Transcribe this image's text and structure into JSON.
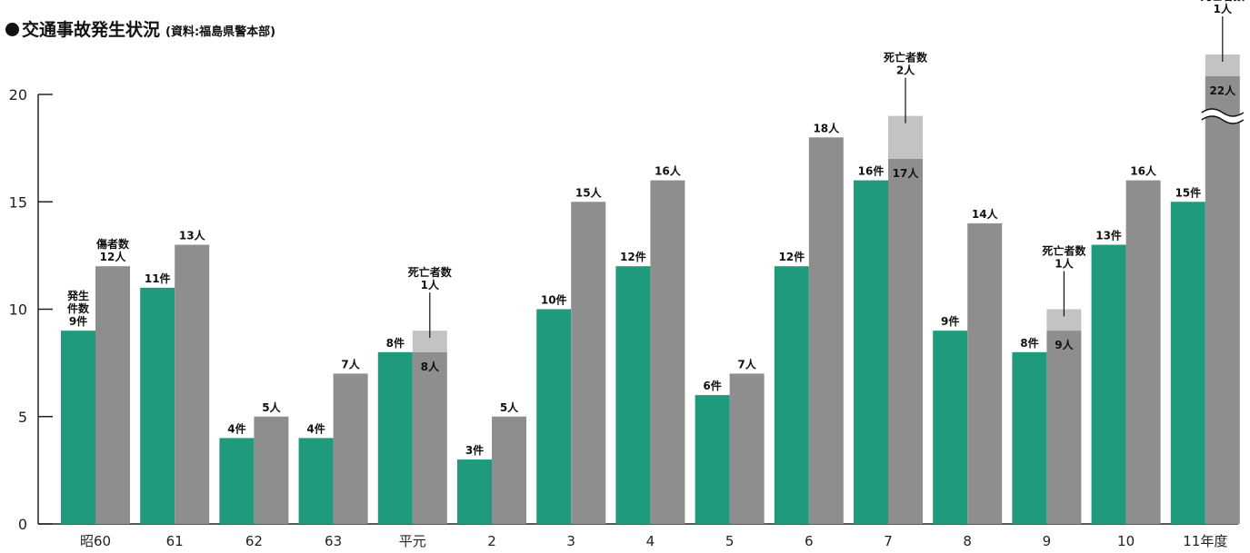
{
  "header": {
    "title": "交通事故発生状況",
    "source": "(資料:福島県警本部)"
  },
  "colors": {
    "accidents": "#1f9a7c",
    "injured": "#8e8e8e",
    "fatalities": "#c3c3c3",
    "axis": "#222222"
  },
  "chart_data": {
    "type": "bar",
    "title": "交通事故発生状況",
    "xlabel": "",
    "ylabel": "",
    "ylim": [
      0,
      20
    ],
    "yticks": [
      0,
      5,
      10,
      15,
      20
    ],
    "grid": false,
    "categories": [
      "昭60",
      "61",
      "62",
      "63",
      "平元",
      "2",
      "3",
      "4",
      "5",
      "6",
      "7",
      "8",
      "9",
      "10",
      "11年度"
    ],
    "series": [
      {
        "name": "発生件数",
        "unit": "件",
        "values": [
          9,
          11,
          4,
          4,
          8,
          3,
          10,
          12,
          6,
          12,
          16,
          9,
          8,
          13,
          15
        ]
      },
      {
        "name": "傷者数",
        "unit": "人",
        "values": [
          12,
          13,
          5,
          7,
          8,
          5,
          15,
          16,
          7,
          18,
          17,
          14,
          9,
          16,
          22
        ]
      },
      {
        "name": "死亡者数",
        "unit": "人",
        "values": [
          0,
          0,
          0,
          0,
          1,
          0,
          0,
          0,
          0,
          0,
          2,
          0,
          1,
          0,
          1
        ]
      }
    ],
    "annotations": {
      "accidents_label_first": "発生\n件数",
      "injured_label_first": "傷者数",
      "fatality_label": "死亡者数",
      "axis_break_category": "11年度"
    }
  }
}
